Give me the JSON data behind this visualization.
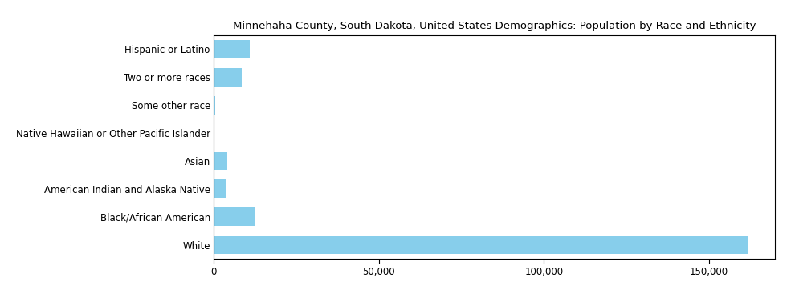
{
  "categories": [
    "White",
    "Black/African American",
    "American Indian and Alaska Native",
    "Asian",
    "Native Hawaiian or Other Pacific Islander",
    "Some other race",
    "Two or more races",
    "Hispanic or Latino"
  ],
  "values": [
    162000,
    12500,
    3800,
    4200,
    300,
    500,
    8500,
    11000
  ],
  "bar_color": "#87CEEB",
  "title": "Minnehaha County, South Dakota, United States Demographics: Population by Race and Ethnicity",
  "xlim": [
    0,
    170000
  ],
  "xticks": [
    0,
    50000,
    100000,
    150000
  ],
  "xtick_labels": [
    "0",
    "50,000",
    "100,000",
    "150,000"
  ],
  "title_fontsize": 9.5,
  "label_fontsize": 8.5
}
